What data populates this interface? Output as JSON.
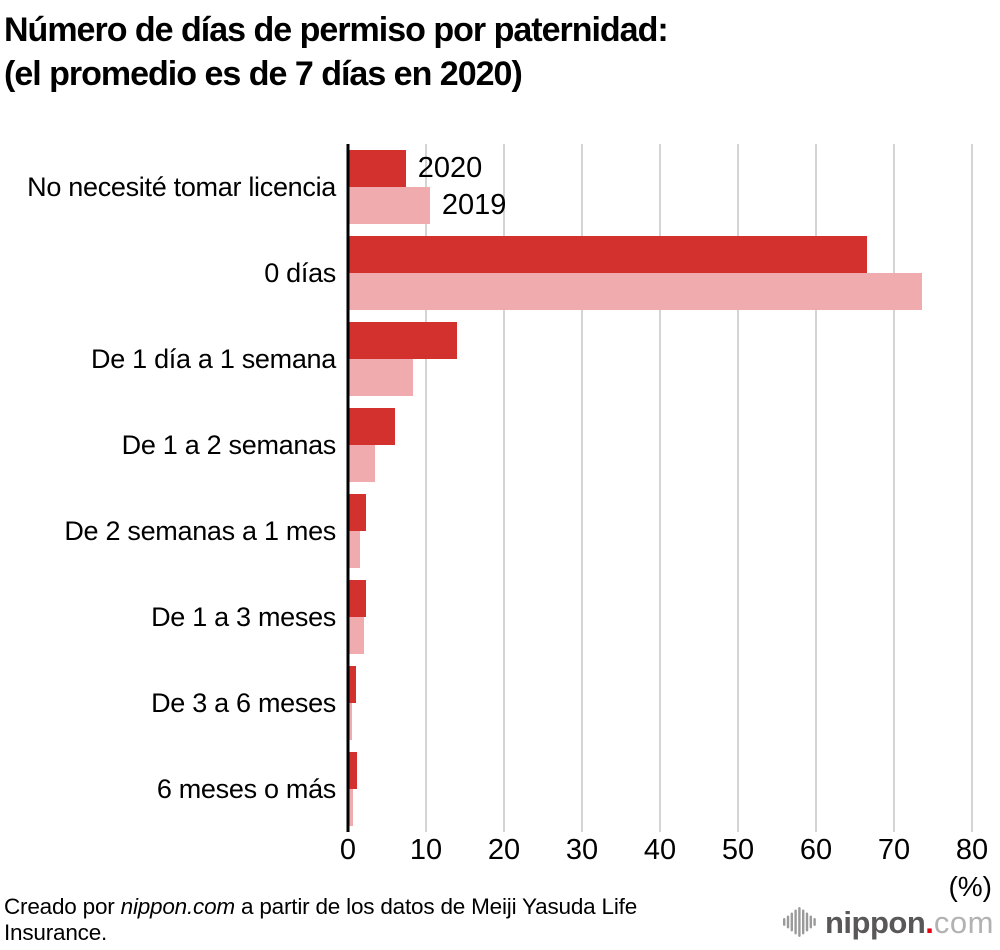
{
  "title": {
    "line1": "Número de días de permiso por paternidad:",
    "line2": "(el promedio es de 7 días en 2020)"
  },
  "chart_data": {
    "type": "bar",
    "orientation": "horizontal",
    "title": "Número de días de permiso por paternidad: (el promedio es de 7 días en 2020)",
    "categories": [
      "No necesité tomar licencia",
      "0 días",
      "De 1 día a 1 semana",
      "De 1 a 2 semanas",
      "De 2 semanas a 1 mes",
      "De 1 a 3 meses",
      "De 3 a 6 meses",
      "6 meses o más"
    ],
    "series": [
      {
        "name": "2020",
        "color": "#d2312d",
        "values": [
          7.4,
          66.6,
          14.0,
          6.0,
          2.3,
          2.3,
          1.0,
          1.1
        ]
      },
      {
        "name": "2019",
        "color": "#efabad",
        "values": [
          10.5,
          73.6,
          8.3,
          3.4,
          1.5,
          2.0,
          0.5,
          0.6
        ]
      }
    ],
    "xlabel": "(%)",
    "xlim": [
      0,
      80
    ],
    "xticks": [
      0,
      10,
      20,
      30,
      40,
      50,
      60,
      70,
      80
    ],
    "grid": true,
    "legend_position": "inline-first-group"
  },
  "footer": {
    "prefix": "Creado por ",
    "brand": "nippon.com",
    "suffix": " a partir de los datos de Meiji Yasuda Life Insurance."
  },
  "logo": {
    "name": "nippon",
    "dot": ".",
    "tld": "com"
  },
  "colors": {
    "bar_2020": "#d2312d",
    "bar_2019": "#efabad",
    "gridline": "#d4d4d4",
    "axis": "#000000",
    "logo_dark": "#595757",
    "logo_dot": "#e60012",
    "logo_light": "#b2b2b2"
  }
}
